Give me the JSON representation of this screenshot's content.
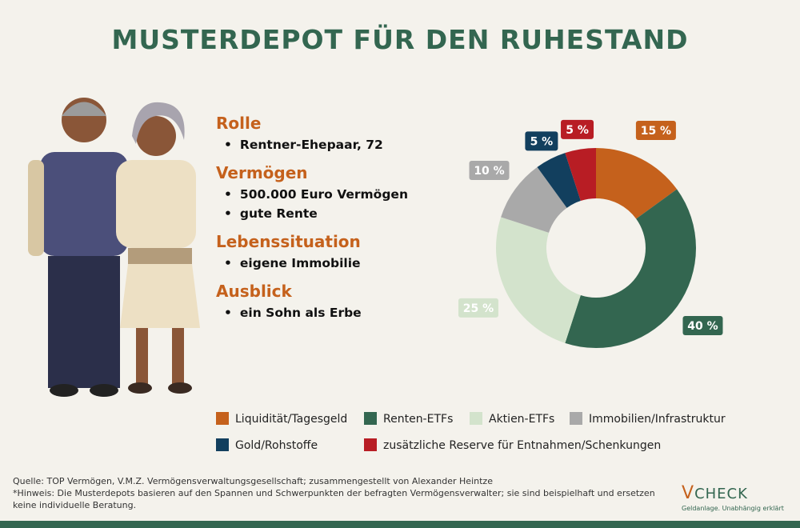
{
  "title": "MUSTERDEPOT FÜR DEN RUHESTAND",
  "profile": [
    {
      "heading": "Rolle",
      "items": [
        "Rentner-Ehepaar, 72"
      ]
    },
    {
      "heading": "Vermögen",
      "items": [
        "500.000 Euro Vermögen",
        "gute Rente"
      ]
    },
    {
      "heading": "Lebenssituation",
      "items": [
        "eigene Immobilie"
      ]
    },
    {
      "heading": "Ausblick",
      "items": [
        "ein Sohn als Erbe"
      ]
    }
  ],
  "chart_data": {
    "type": "donut",
    "categories": [
      "Liquidität/Tagesgeld",
      "Renten-ETFs",
      "Aktien-ETFs",
      "Immobilien/Infrastruktur",
      "Gold/Rohstoffe",
      "zusätzliche Reserve für Entnahmen/Schenkungen"
    ],
    "values": [
      15,
      40,
      25,
      10,
      5,
      5
    ],
    "value_labels": [
      "15 %",
      "40 %",
      "25 %",
      "10 %",
      "5 %",
      "5 %"
    ],
    "colors": [
      "#c5611c",
      "#336650",
      "#d3e3cc",
      "#a9a9a9",
      "#123f5e",
      "#b81d24"
    ]
  },
  "source": "Quelle: TOP Vermögen, V.M.Z. Vermögensverwaltungsgesellschaft; zusammengestellt von Alexander Heintze",
  "note": "*Hinweis: Die Musterdepots basieren auf den Spannen und Schwerpunkten der befragten Vermögensverwalter; sie sind beispielhaft und ersetzen keine individuelle Beratung.",
  "logo": {
    "name": "CHECK",
    "tagline": "Geldanlage. Unabhängig erklärt"
  }
}
